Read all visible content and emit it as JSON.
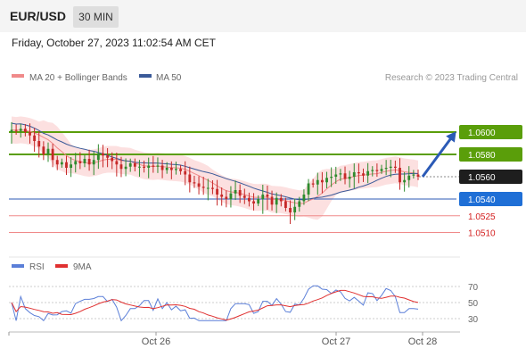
{
  "header": {
    "symbol": "EUR/USD",
    "timeframe": "30 MIN",
    "timestamp": "Friday, October 27, 2023 11:02:54 AM CET"
  },
  "chart_data": {
    "type": "candlestick",
    "legend": [
      {
        "label": "MA 20 + Bollinger Bands",
        "color": "#f08a8a"
      },
      {
        "label": "MA 50",
        "color": "#3a5a99"
      }
    ],
    "credit": "Research © 2023 Trading Central",
    "ylim": [
      1.05,
      1.0616
    ],
    "levels": [
      {
        "label": "1.0600",
        "value": 1.06,
        "kind": "green"
      },
      {
        "label": "1.0580",
        "value": 1.058,
        "kind": "green"
      },
      {
        "label": "1.0560",
        "value": 1.056,
        "kind": "current"
      },
      {
        "label": "1.0540",
        "value": 1.054,
        "kind": "blue"
      },
      {
        "label": "1.0525",
        "value": 1.0525,
        "kind": "red"
      },
      {
        "label": "1.0510",
        "value": 1.051,
        "kind": "red"
      }
    ],
    "x_ticks": [
      "Oct 26",
      "Oct 27",
      "Oct 28"
    ],
    "close": [
      1.0602,
      1.0601,
      1.0603,
      1.06,
      1.0597,
      1.0592,
      1.0587,
      1.058,
      1.0585,
      1.0575,
      1.0571,
      1.0573,
      1.0568,
      1.0571,
      1.0574,
      1.0572,
      1.0576,
      1.0571,
      1.0575,
      1.0581,
      1.0579,
      1.0577,
      1.0574,
      1.0571,
      1.0567,
      1.0569,
      1.0572,
      1.0569,
      1.0569,
      1.0568,
      1.057,
      1.0569,
      1.057,
      1.0566,
      1.0568,
      1.0566,
      1.0567,
      1.0565,
      1.0562,
      1.0555,
      1.0554,
      1.0551,
      1.055,
      1.055,
      1.0549,
      1.0544,
      1.0542,
      1.054,
      1.0545,
      1.0548,
      1.0543,
      1.0541,
      1.0538,
      1.0536,
      1.054,
      1.0544,
      1.0542,
      1.0535,
      1.0541,
      1.0538,
      1.0532,
      1.0528,
      1.0533,
      1.0538,
      1.0544,
      1.0554,
      1.0553,
      1.0557,
      1.0555,
      1.0559,
      1.056,
      1.0562,
      1.0563,
      1.0558,
      1.056,
      1.0564,
      1.0563,
      1.0561,
      1.0565,
      1.0566,
      1.0565,
      1.0567,
      1.0568,
      1.0569,
      1.0568,
      1.0555,
      1.0557,
      1.0561,
      1.0562,
      1.056
    ],
    "forecast_arrow": {
      "from": 1.056,
      "to": 1.06
    },
    "rsi": {
      "legend": [
        {
          "label": "RSI",
          "color": "#5b7fd8"
        },
        {
          "label": "9MA",
          "color": "#e03030"
        }
      ],
      "levels": [
        70,
        50,
        30
      ]
    }
  }
}
